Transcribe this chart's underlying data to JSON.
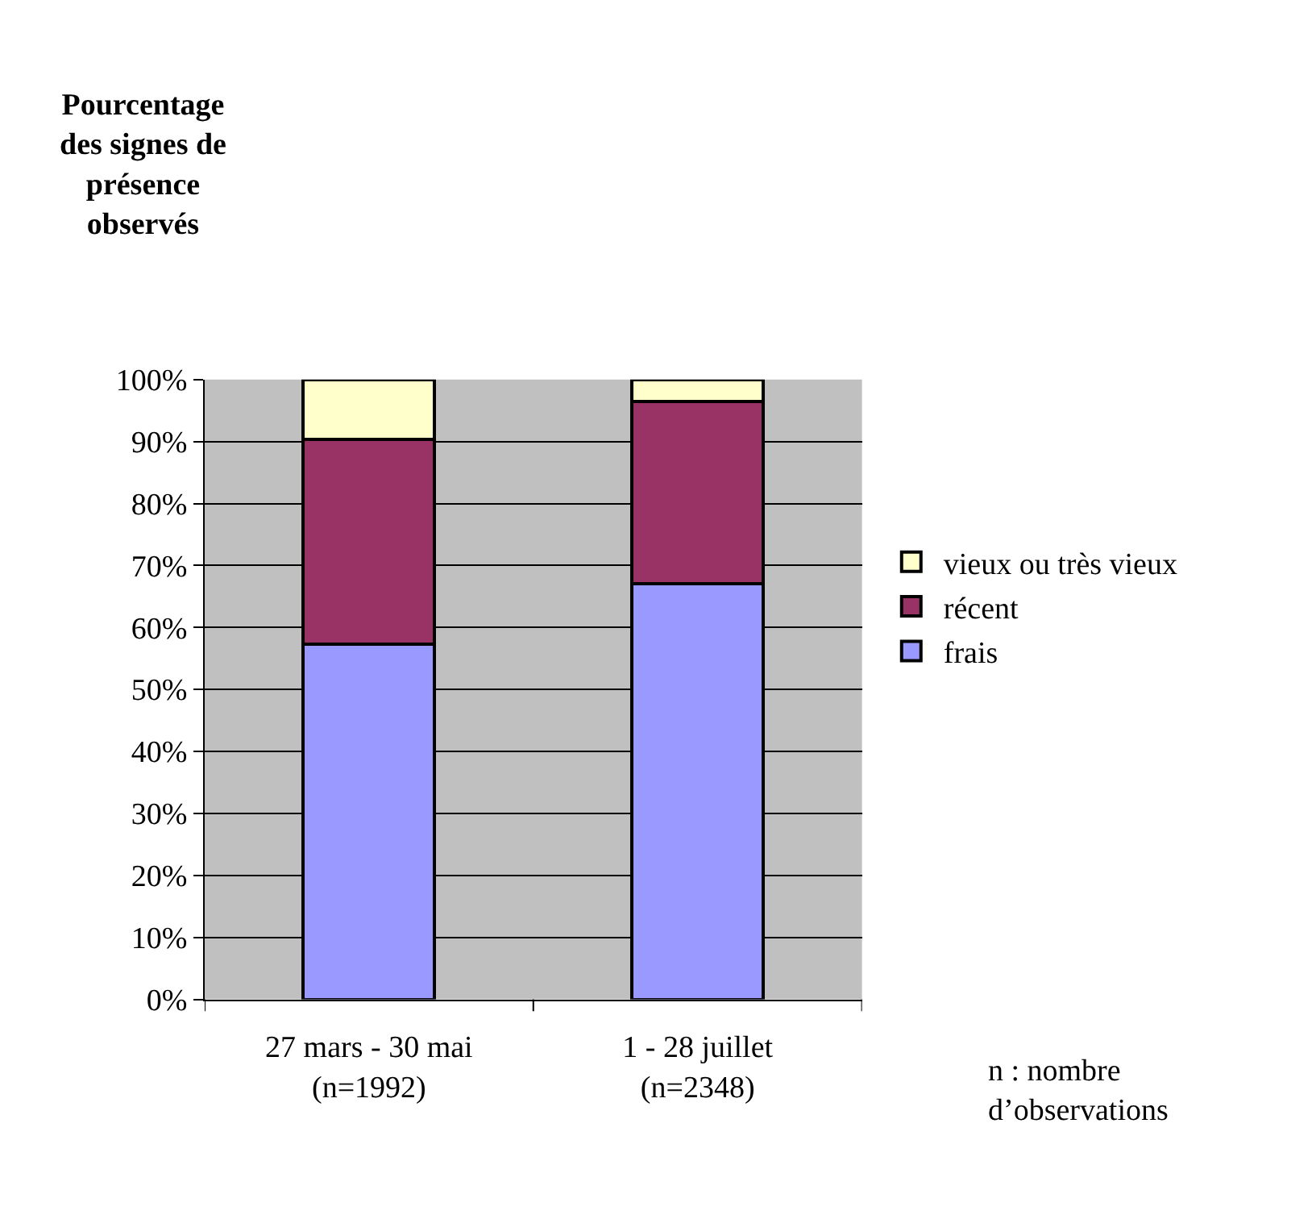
{
  "chart_data": {
    "type": "bar",
    "stacked": true,
    "ylabel": "Pourcentage\ndes signes de\nprésence\nobservés",
    "categories": [
      "27 mars - 30 mai\n(n=1992)",
      "1 - 28 juillet\n(n=2348)"
    ],
    "series": [
      {
        "name": "frais",
        "color": "#9999ff",
        "values": [
          57.3,
          67.0
        ]
      },
      {
        "name": "récent",
        "color": "#993366",
        "values": [
          33.1,
          29.4
        ]
      },
      {
        "name": "vieux ou très vieux",
        "color": "#ffffcc",
        "values": [
          9.6,
          3.6
        ]
      }
    ],
    "ylim": [
      0,
      100
    ],
    "yticks": [
      {
        "value": 0,
        "label": "0%"
      },
      {
        "value": 10,
        "label": "10%"
      },
      {
        "value": 20,
        "label": "20%"
      },
      {
        "value": 30,
        "label": "30%"
      },
      {
        "value": 40,
        "label": "40%"
      },
      {
        "value": 50,
        "label": "50%"
      },
      {
        "value": 60,
        "label": "60%"
      },
      {
        "value": 70,
        "label": "70%"
      },
      {
        "value": 80,
        "label": "80%"
      },
      {
        "value": 90,
        "label": "90%"
      },
      {
        "value": 100,
        "label": "100%"
      }
    ],
    "grid": "y",
    "legend": "right",
    "annotations": [
      "n : nombre\nd’observations"
    ]
  }
}
